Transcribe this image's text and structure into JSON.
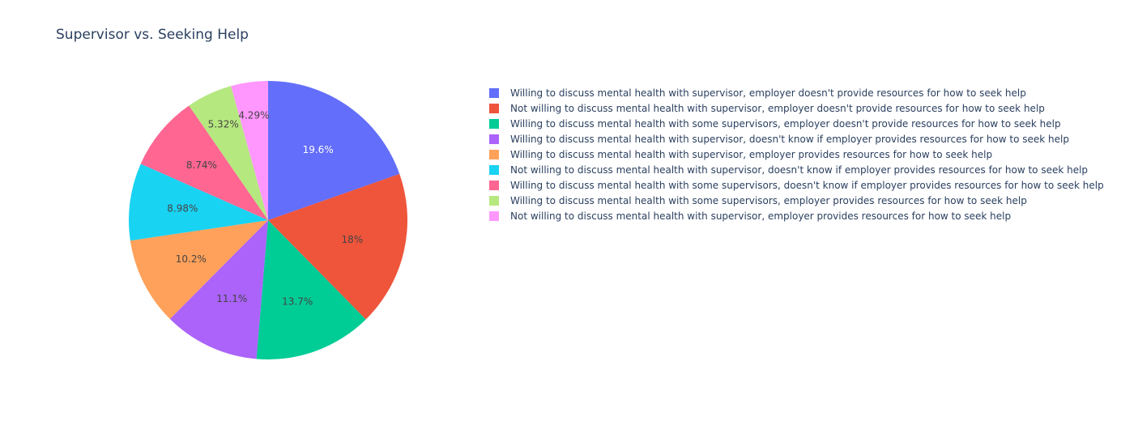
{
  "chart_data": {
    "type": "pie",
    "title": "Supervisor vs. Seeking Help",
    "legend_position": "right",
    "slices": [
      {
        "label": "Willing to discuss mental health with supervisor, employer doesn't provide resources for how to seek help",
        "value": 19.6,
        "text": "19.6%",
        "color": "#636efa",
        "text_color": "#ffffff"
      },
      {
        "label": "Not willing to discuss mental health with supervisor, employer doesn't provide resources for how to seek help",
        "value": 18.0,
        "text": "18%",
        "color": "#EF553B",
        "text_color": "#444444"
      },
      {
        "label": "Willing to discuss mental health with some supervisors, employer doesn't provide resources for how to seek help",
        "value": 13.7,
        "text": "13.7%",
        "color": "#00cc96",
        "text_color": "#444444"
      },
      {
        "label": "Willing to discuss mental health with supervisor, doesn't know if employer provides resources for how to seek help",
        "value": 11.1,
        "text": "11.1%",
        "color": "#ab63fa",
        "text_color": "#444444"
      },
      {
        "label": "Willing to discuss mental health with supervisor, employer provides resources for how to seek help",
        "value": 10.2,
        "text": "10.2%",
        "color": "#FFA15A",
        "text_color": "#444444"
      },
      {
        "label": "Not willing to discuss mental health with supervisor, doesn't know if employer provides resources for how to seek help",
        "value": 8.98,
        "text": "8.98%",
        "color": "#19d3f3",
        "text_color": "#444444"
      },
      {
        "label": "Willing to discuss mental health with some supervisors, doesn't know if employer provides resources for how to seek help",
        "value": 8.74,
        "text": "8.74%",
        "color": "#FF6692",
        "text_color": "#444444"
      },
      {
        "label": "Willing to discuss mental health with some supervisors, employer provides resources for how to seek help",
        "value": 5.32,
        "text": "5.32%",
        "color": "#B6E880",
        "text_color": "#444444"
      },
      {
        "label": "Not willing to discuss mental health with supervisor, employer provides resources for how to seek help",
        "value": 4.29,
        "text": "4.29%",
        "color": "#FF97FF",
        "text_color": "#444444"
      }
    ]
  }
}
